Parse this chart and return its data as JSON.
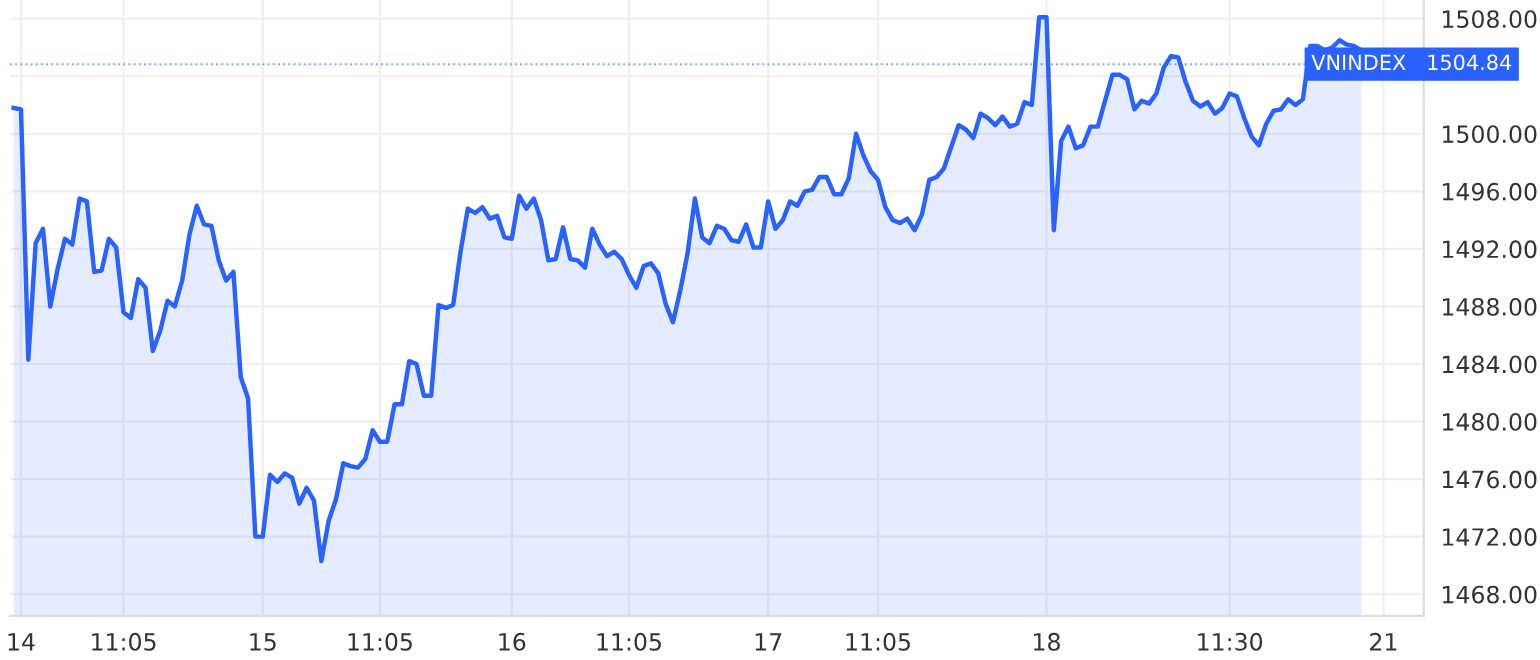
{
  "chart_data": {
    "type": "area",
    "categories": [
      null,
      "14",
      null,
      null,
      null,
      null,
      null,
      null,
      null,
      null,
      null,
      null,
      null,
      null,
      null,
      "11:05",
      null,
      null,
      null,
      null,
      null,
      null,
      null,
      null,
      null,
      null,
      null,
      null,
      null,
      null,
      null,
      null,
      null,
      null,
      "15",
      null,
      null,
      null,
      null,
      null,
      null,
      null,
      null,
      null,
      null,
      null,
      null,
      null,
      null,
      null,
      "11:05",
      null,
      null,
      null,
      null,
      null,
      null,
      null,
      null,
      null,
      null,
      null,
      null,
      null,
      null,
      null,
      null,
      null,
      "16",
      null,
      null,
      null,
      null,
      null,
      null,
      null,
      null,
      null,
      null,
      null,
      null,
      null,
      null,
      null,
      "11:05",
      null,
      null,
      null,
      null,
      null,
      null,
      null,
      null,
      null,
      null,
      null,
      null,
      null,
      null,
      null,
      null,
      null,
      null,
      "17",
      null,
      null,
      null,
      null,
      null,
      null,
      null,
      null,
      null,
      null,
      null,
      null,
      null,
      null,
      "11:05",
      null,
      null,
      null,
      null,
      null,
      null,
      null,
      null,
      null,
      null,
      null,
      null,
      null,
      null,
      null,
      null,
      null,
      null,
      null,
      null,
      null,
      null,
      "18",
      null,
      null,
      null,
      null,
      null,
      null,
      null,
      null,
      null,
      null,
      null,
      null,
      null,
      null,
      null,
      null,
      null,
      null,
      null,
      null,
      null,
      null,
      null,
      null,
      "11:30",
      null,
      null,
      null,
      null,
      null,
      null,
      null,
      null,
      null,
      null,
      null,
      null,
      null,
      null,
      null,
      null,
      null,
      null,
      null,
      null,
      "21",
      null,
      null,
      null,
      null,
      null
    ],
    "series": [
      {
        "color": "#2962ff",
        "values": [
          1501.8,
          1501.7,
          1484.3,
          1492.4,
          1493.4,
          1488.0,
          1490.6,
          1492.7,
          1492.3,
          1495.5,
          1495.3,
          1490.4,
          1490.5,
          1492.7,
          1492.1,
          1487.6,
          1487.2,
          1489.9,
          1489.3,
          1484.9,
          1486.3,
          1488.4,
          1488.0,
          1489.8,
          1493.0,
          1495.0,
          1493.7,
          1493.6,
          1491.2,
          1489.8,
          1490.4,
          1483.1,
          1481.6,
          1472.0,
          1472.0,
          1476.3,
          1475.8,
          1476.4,
          1476.1,
          1474.3,
          1475.4,
          1474.5,
          1470.3,
          1473.1,
          1474.6,
          1477.1,
          1476.9,
          1476.8,
          1477.4,
          1479.4,
          1478.6,
          1478.6,
          1481.2,
          1481.2,
          1484.2,
          1484.0,
          1481.8,
          1481.8,
          1488.1,
          1487.9,
          1488.1,
          1491.8,
          1494.8,
          1494.5,
          1494.9,
          1494.1,
          1494.3,
          1492.8,
          1492.7,
          1495.7,
          1494.8,
          1495.5,
          1494.0,
          1491.2,
          1491.3,
          1493.5,
          1491.3,
          1491.2,
          1490.7,
          1493.4,
          1492.3,
          1491.5,
          1491.8,
          1491.3,
          1490.2,
          1489.3,
          1490.8,
          1491.0,
          1490.3,
          1488.2,
          1486.9,
          1489.1,
          1491.7,
          1495.5,
          1492.8,
          1492.4,
          1493.6,
          1493.4,
          1492.6,
          1492.5,
          1493.7,
          1492.1,
          1492.1,
          1495.3,
          1493.4,
          1494.0,
          1495.3,
          1495.0,
          1496.0,
          1496.1,
          1497.0,
          1497.0,
          1495.8,
          1495.8,
          1496.9,
          1500.0,
          1498.5,
          1497.4,
          1496.8,
          1494.9,
          1494.0,
          1493.8,
          1494.1,
          1493.3,
          1494.4,
          1496.8,
          1497.0,
          1497.6,
          1499.1,
          1500.6,
          1500.3,
          1499.7,
          1501.4,
          1501.1,
          1500.6,
          1501.2,
          1500.5,
          1500.7,
          1502.2,
          1502.0,
          1508.1,
          1508.1,
          1493.3,
          1499.5,
          1500.5,
          1499.0,
          1499.2,
          1500.5,
          1500.5,
          1502.3,
          1504.1,
          1504.1,
          1503.8,
          1501.7,
          1502.3,
          1502.1,
          1502.8,
          1504.6,
          1505.4,
          1505.3,
          1503.6,
          1502.3,
          1501.9,
          1502.2,
          1501.4,
          1501.8,
          1502.8,
          1502.6,
          1501.1,
          1499.8,
          1499.2,
          1500.7,
          1501.6,
          1501.7,
          1502.4,
          1502.0,
          1502.4,
          1506.1,
          1506.1,
          1505.8,
          1506.0,
          1506.5,
          1506.2,
          1506.1,
          1505.8,
          null,
          null,
          null,
          null,
          null,
          null,
          null,
          null
        ]
      }
    ],
    "ylim": [
      1466.5,
      1509.3
    ],
    "yticks": [
      {
        "value": 1468,
        "label": "1468.00"
      },
      {
        "value": 1472,
        "label": "1472.00"
      },
      {
        "value": 1476,
        "label": "1476.00"
      },
      {
        "value": 1480,
        "label": "1480.00"
      },
      {
        "value": 1484,
        "label": "1484.00"
      },
      {
        "value": 1488,
        "label": "1488.00"
      },
      {
        "value": 1492,
        "label": "1492.00"
      },
      {
        "value": 1496,
        "label": "1496.00"
      },
      {
        "value": 1500,
        "label": "1500.00"
      },
      {
        "value": 1504,
        "label": null
      },
      {
        "value": 1508,
        "label": "1508.00"
      }
    ],
    "ref_lines": [
      {
        "axis": "y",
        "value": 1504.84,
        "label": "VNINDEX   1504.84",
        "color": "#2962ff",
        "line_style": "dotted"
      }
    ],
    "grid": true,
    "legend": false,
    "marker": "none",
    "line_style": "solid"
  }
}
